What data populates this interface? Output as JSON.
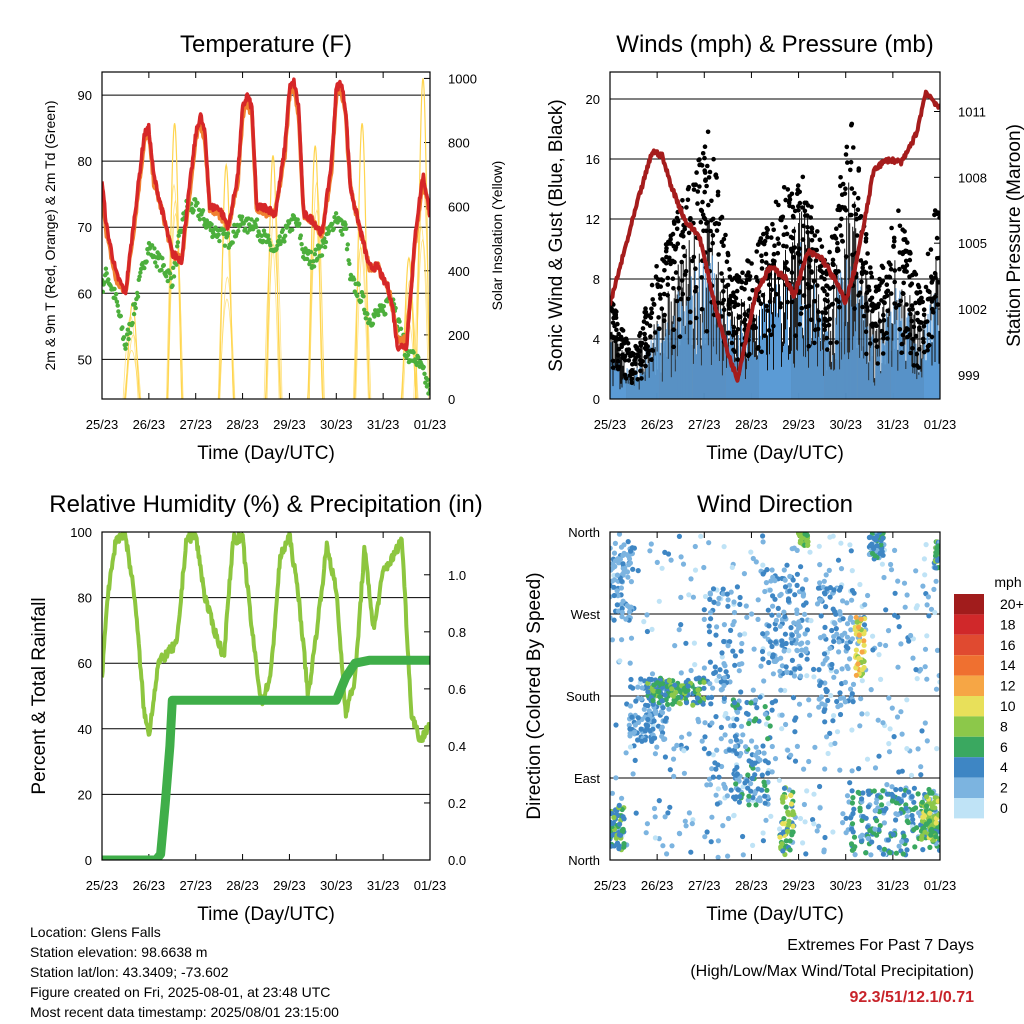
{
  "x_ticks": [
    "25/23",
    "26/23",
    "27/23",
    "28/23",
    "29/23",
    "30/23",
    "31/23",
    "01/23"
  ],
  "info": {
    "location": "Location: Glens Falls",
    "elevation": "Station elevation: 98.6638 m",
    "latlon": "Station lat/lon: 43.3409; -73.602",
    "created": "Figure created on Fri, 2025-08-01, at 23:48 UTC",
    "recent": "Most recent data timestamp: 2025/08/01 23:15:00"
  },
  "extremes": {
    "title": "Extremes For Past 7 Days",
    "subtitle": "(High/Low/Max Wind/Total Precipitation)",
    "values": "92.3/51/12.1/0.71",
    "value_color": "#c8242b"
  },
  "colorbar": {
    "unit": "mph",
    "labels": [
      "20+",
      "18",
      "16",
      "14",
      "12",
      "10",
      "8",
      "6",
      "4",
      "2",
      "0"
    ],
    "colors": [
      "#a11c1c",
      "#d0282a",
      "#e04a30",
      "#ef7030",
      "#f6a645",
      "#e8e05a",
      "#8cc84a",
      "#3aa860",
      "#3e86c4",
      "#7cb4e0",
      "#bfe3f6"
    ]
  },
  "chart_data": [
    {
      "type": "line",
      "title": "Temperature (F)",
      "xlabel": "Time (Day/UTC)",
      "ylabel": "2m & 9m T (Red, Orange) & 2m Td (Green)",
      "ylabel_right": "Solar Insolation (Yellow)",
      "ylim": [
        44,
        93.5
      ],
      "yticks": [
        50,
        60,
        70,
        80,
        90
      ],
      "ylim_right": [
        0,
        1020
      ],
      "yticks_right": [
        0,
        200,
        400,
        600,
        800,
        1000
      ],
      "x": [
        0,
        0.1,
        0.3,
        0.5,
        0.7,
        0.9,
        1.0,
        1.1,
        1.3,
        1.5,
        1.7,
        1.8,
        2.0,
        2.1,
        2.2,
        2.3,
        2.5,
        2.7,
        2.9,
        3.0,
        3.1,
        3.2,
        3.3,
        3.5,
        3.7,
        3.9,
        4.0,
        4.1,
        4.2,
        4.3,
        4.5,
        4.7,
        4.9,
        5.0,
        5.1,
        5.2,
        5.3,
        5.5,
        5.7,
        5.9,
        6.0,
        6.1,
        6.2,
        6.3,
        6.5,
        6.7,
        6.85,
        7.0
      ],
      "series": [
        {
          "name": "2m T (Red)",
          "color": "#d62728",
          "values": [
            77,
            70,
            63,
            60,
            72,
            84,
            85,
            78,
            72,
            66,
            65,
            72,
            84,
            87,
            84,
            73,
            73,
            70,
            78,
            88,
            90,
            88,
            73,
            73,
            72,
            82,
            91,
            92,
            88,
            72,
            71,
            69,
            80,
            91,
            92,
            88,
            76,
            70,
            64,
            64,
            62,
            61,
            58,
            52,
            52,
            70,
            78,
            72
          ]
        },
        {
          "name": "9m T (Orange)",
          "color": "#f08030",
          "values": [
            76,
            69,
            62,
            60,
            71,
            83,
            84,
            77,
            72,
            66,
            65,
            71,
            83,
            86,
            83,
            73,
            72,
            70,
            77,
            87,
            89,
            87,
            73,
            72,
            72,
            81,
            90,
            91,
            87,
            72,
            71,
            69,
            79,
            90,
            91,
            87,
            76,
            70,
            64,
            64,
            62,
            61,
            58,
            53,
            53,
            69,
            77,
            72
          ]
        },
        {
          "name": "2m Td (Green)",
          "color": "#4caf3c",
          "values": [
            61,
            63,
            59,
            52,
            58,
            65,
            67,
            66,
            64,
            62,
            70,
            73,
            73,
            72,
            71,
            70,
            69,
            68,
            70,
            71,
            70,
            71,
            70,
            68,
            66,
            69,
            70,
            71,
            70,
            66,
            65,
            67,
            70,
            72,
            70,
            70,
            62,
            60,
            56,
            57,
            57,
            59,
            60,
            56,
            51,
            50,
            48,
            45
          ]
        }
      ],
      "solar": {
        "name": "Solar Insolation (Yellow)",
        "color": "#ffd54f",
        "peaks": [
          [
            0.65,
            300
          ],
          [
            1.55,
            860
          ],
          [
            2.65,
            730
          ],
          [
            3.65,
            760
          ],
          [
            4.55,
            790
          ],
          [
            5.55,
            860
          ],
          [
            6.55,
            440
          ],
          [
            6.85,
            1000
          ]
        ]
      }
    },
    {
      "type": "scatter",
      "title": "Winds (mph) & Pressure (mb)",
      "xlabel": "Time (Day/UTC)",
      "ylabel": "Sonic Wind & Gust (Blue, Black)",
      "ylabel_right": "Station Pressure (Maroon)",
      "ylim": [
        0,
        21.8
      ],
      "yticks": [
        0,
        4,
        8,
        12,
        16,
        20
      ],
      "ylim_right": [
        997.9,
        1012.8
      ],
      "yticks_right": [
        999,
        1002,
        1005,
        1008,
        1011
      ],
      "wind_peaks": [
        [
          0,
          4
        ],
        [
          0.5,
          2
        ],
        [
          1.0,
          5
        ],
        [
          1.6,
          8
        ],
        [
          2.1,
          11
        ],
        [
          2.6,
          5
        ],
        [
          3.1,
          6
        ],
        [
          3.6,
          8
        ],
        [
          4.1,
          11
        ],
        [
          4.6,
          5
        ],
        [
          5.1,
          12
        ],
        [
          5.6,
          4
        ],
        [
          6.1,
          8
        ],
        [
          6.6,
          4
        ],
        [
          7.0,
          9
        ]
      ],
      "gust_peaks": [
        [
          0,
          7
        ],
        [
          0.5,
          3
        ],
        [
          1.0,
          9
        ],
        [
          1.6,
          14
        ],
        [
          2.1,
          18
        ],
        [
          2.6,
          8
        ],
        [
          3.1,
          10
        ],
        [
          3.6,
          14
        ],
        [
          4.1,
          15
        ],
        [
          4.6,
          9
        ],
        [
          5.1,
          20
        ],
        [
          5.6,
          7
        ],
        [
          6.1,
          13
        ],
        [
          6.6,
          7
        ],
        [
          7.0,
          15
        ]
      ],
      "pressure": {
        "name": "Station Pressure (Maroon)",
        "color": "#a51c1c",
        "x": [
          0,
          0.3,
          0.6,
          0.9,
          1.1,
          1.3,
          1.6,
          1.9,
          2.2,
          2.5,
          2.7,
          2.9,
          3.1,
          3.4,
          3.7,
          3.9,
          4.2,
          4.5,
          4.8,
          5.0,
          5.2,
          5.4,
          5.6,
          5.9,
          6.2,
          6.5,
          6.7,
          6.9,
          7.0
        ],
        "values": [
          1002.2,
          1004.6,
          1007.0,
          1009.2,
          1009.0,
          1007.6,
          1006.0,
          1005.3,
          1002.4,
          1000.0,
          998.8,
          1000.8,
          1002.8,
          1003.9,
          1003.5,
          1002.6,
          1004.6,
          1004.3,
          1003.2,
          1002.3,
          1003.9,
          1006.0,
          1008.4,
          1008.8,
          1008.7,
          1010.0,
          1011.9,
          1011.4,
          1011.1
        ]
      }
    },
    {
      "type": "line",
      "title": "Relative Humidity (%) & Precipitation (in)",
      "xlabel": "Time (Day/UTC)",
      "ylabel": "Percent & Total Rainfall",
      "ylim": [
        0,
        100
      ],
      "yticks": [
        0,
        20,
        40,
        60,
        80,
        100
      ],
      "ylim_right": [
        0,
        1.15
      ],
      "yticks_right": [
        0.0,
        0.2,
        0.4,
        0.6,
        0.8,
        1.0
      ],
      "x": [
        0,
        0.1,
        0.3,
        0.5,
        0.7,
        0.9,
        1.0,
        1.2,
        1.4,
        1.6,
        1.8,
        2.0,
        2.2,
        2.4,
        2.6,
        2.8,
        3.0,
        3.2,
        3.4,
        3.6,
        3.8,
        4.0,
        4.2,
        4.4,
        4.6,
        4.8,
        5.0,
        5.2,
        5.4,
        5.6,
        5.8,
        6.0,
        6.2,
        6.4,
        6.6,
        6.8,
        7.0
      ],
      "series": [
        {
          "name": "Relative Humidity",
          "color": "#8dc63f",
          "values": [
            55,
            78,
            98,
            99,
            80,
            45,
            38,
            60,
            63,
            66,
            98,
            99,
            80,
            70,
            62,
            98,
            98,
            70,
            48,
            56,
            92,
            99,
            80,
            50,
            72,
            96,
            82,
            45,
            55,
            95,
            70,
            88,
            92,
            98,
            45,
            36,
            42
          ]
        }
      ],
      "precip": {
        "name": "Total Rainfall",
        "color": "#3fae49",
        "x": [
          0,
          1.15,
          1.25,
          1.35,
          1.45,
          1.5,
          4.9,
          5.0,
          5.2,
          5.4,
          5.7,
          7.0
        ],
        "values": [
          0,
          0,
          0.02,
          0.2,
          0.4,
          0.56,
          0.56,
          0.56,
          0.64,
          0.69,
          0.7,
          0.7
        ]
      }
    },
    {
      "type": "scatter",
      "title": "Wind Direction",
      "xlabel": "Time (Day/UTC)",
      "ylabel": "Direction (Colored By Speed)",
      "ylim": [
        0,
        360
      ],
      "yticks": [
        "North",
        "East",
        "South",
        "West",
        "North"
      ],
      "clusters": [
        {
          "x": [
            0.0,
            0.5
          ],
          "dir": [
            260,
            350
          ],
          "speed": [
            1,
            4
          ]
        },
        {
          "x": [
            0.0,
            0.3
          ],
          "dir": [
            10,
            60
          ],
          "speed": [
            3,
            8
          ]
        },
        {
          "x": [
            0.4,
            1.2
          ],
          "dir": [
            130,
            200
          ],
          "speed": [
            1,
            5
          ]
        },
        {
          "x": [
            0.8,
            2.0
          ],
          "dir": [
            170,
            200
          ],
          "speed": [
            3,
            8
          ]
        },
        {
          "x": [
            2.0,
            2.8
          ],
          "dir": [
            60,
            300
          ],
          "speed": [
            1,
            5
          ]
        },
        {
          "x": [
            2.6,
            3.4
          ],
          "dir": [
            60,
            180
          ],
          "speed": [
            2,
            6
          ]
        },
        {
          "x": [
            3.2,
            4.2
          ],
          "dir": [
            200,
            320
          ],
          "speed": [
            1,
            5
          ]
        },
        {
          "x": [
            3.6,
            3.9
          ],
          "dir": [
            5,
            80
          ],
          "speed": [
            4,
            10
          ]
        },
        {
          "x": [
            4.0,
            4.2
          ],
          "dir": [
            345,
            360
          ],
          "speed": [
            6,
            9
          ]
        },
        {
          "x": [
            4.4,
            5.2
          ],
          "dir": [
            150,
            300
          ],
          "speed": [
            1,
            5
          ]
        },
        {
          "x": [
            5.2,
            5.4
          ],
          "dir": [
            200,
            270
          ],
          "speed": [
            8,
            12
          ]
        },
        {
          "x": [
            5.5,
            5.8
          ],
          "dir": [
            330,
            360
          ],
          "speed": [
            2,
            7
          ]
        },
        {
          "x": [
            5.1,
            7.0
          ],
          "dir": [
            5,
            80
          ],
          "speed": [
            2,
            7
          ]
        },
        {
          "x": [
            6.6,
            7.0
          ],
          "dir": [
            20,
            70
          ],
          "speed": [
            6,
            10
          ]
        },
        {
          "x": [
            6.9,
            7.0
          ],
          "dir": [
            320,
            350
          ],
          "speed": [
            2,
            8
          ]
        }
      ]
    }
  ]
}
